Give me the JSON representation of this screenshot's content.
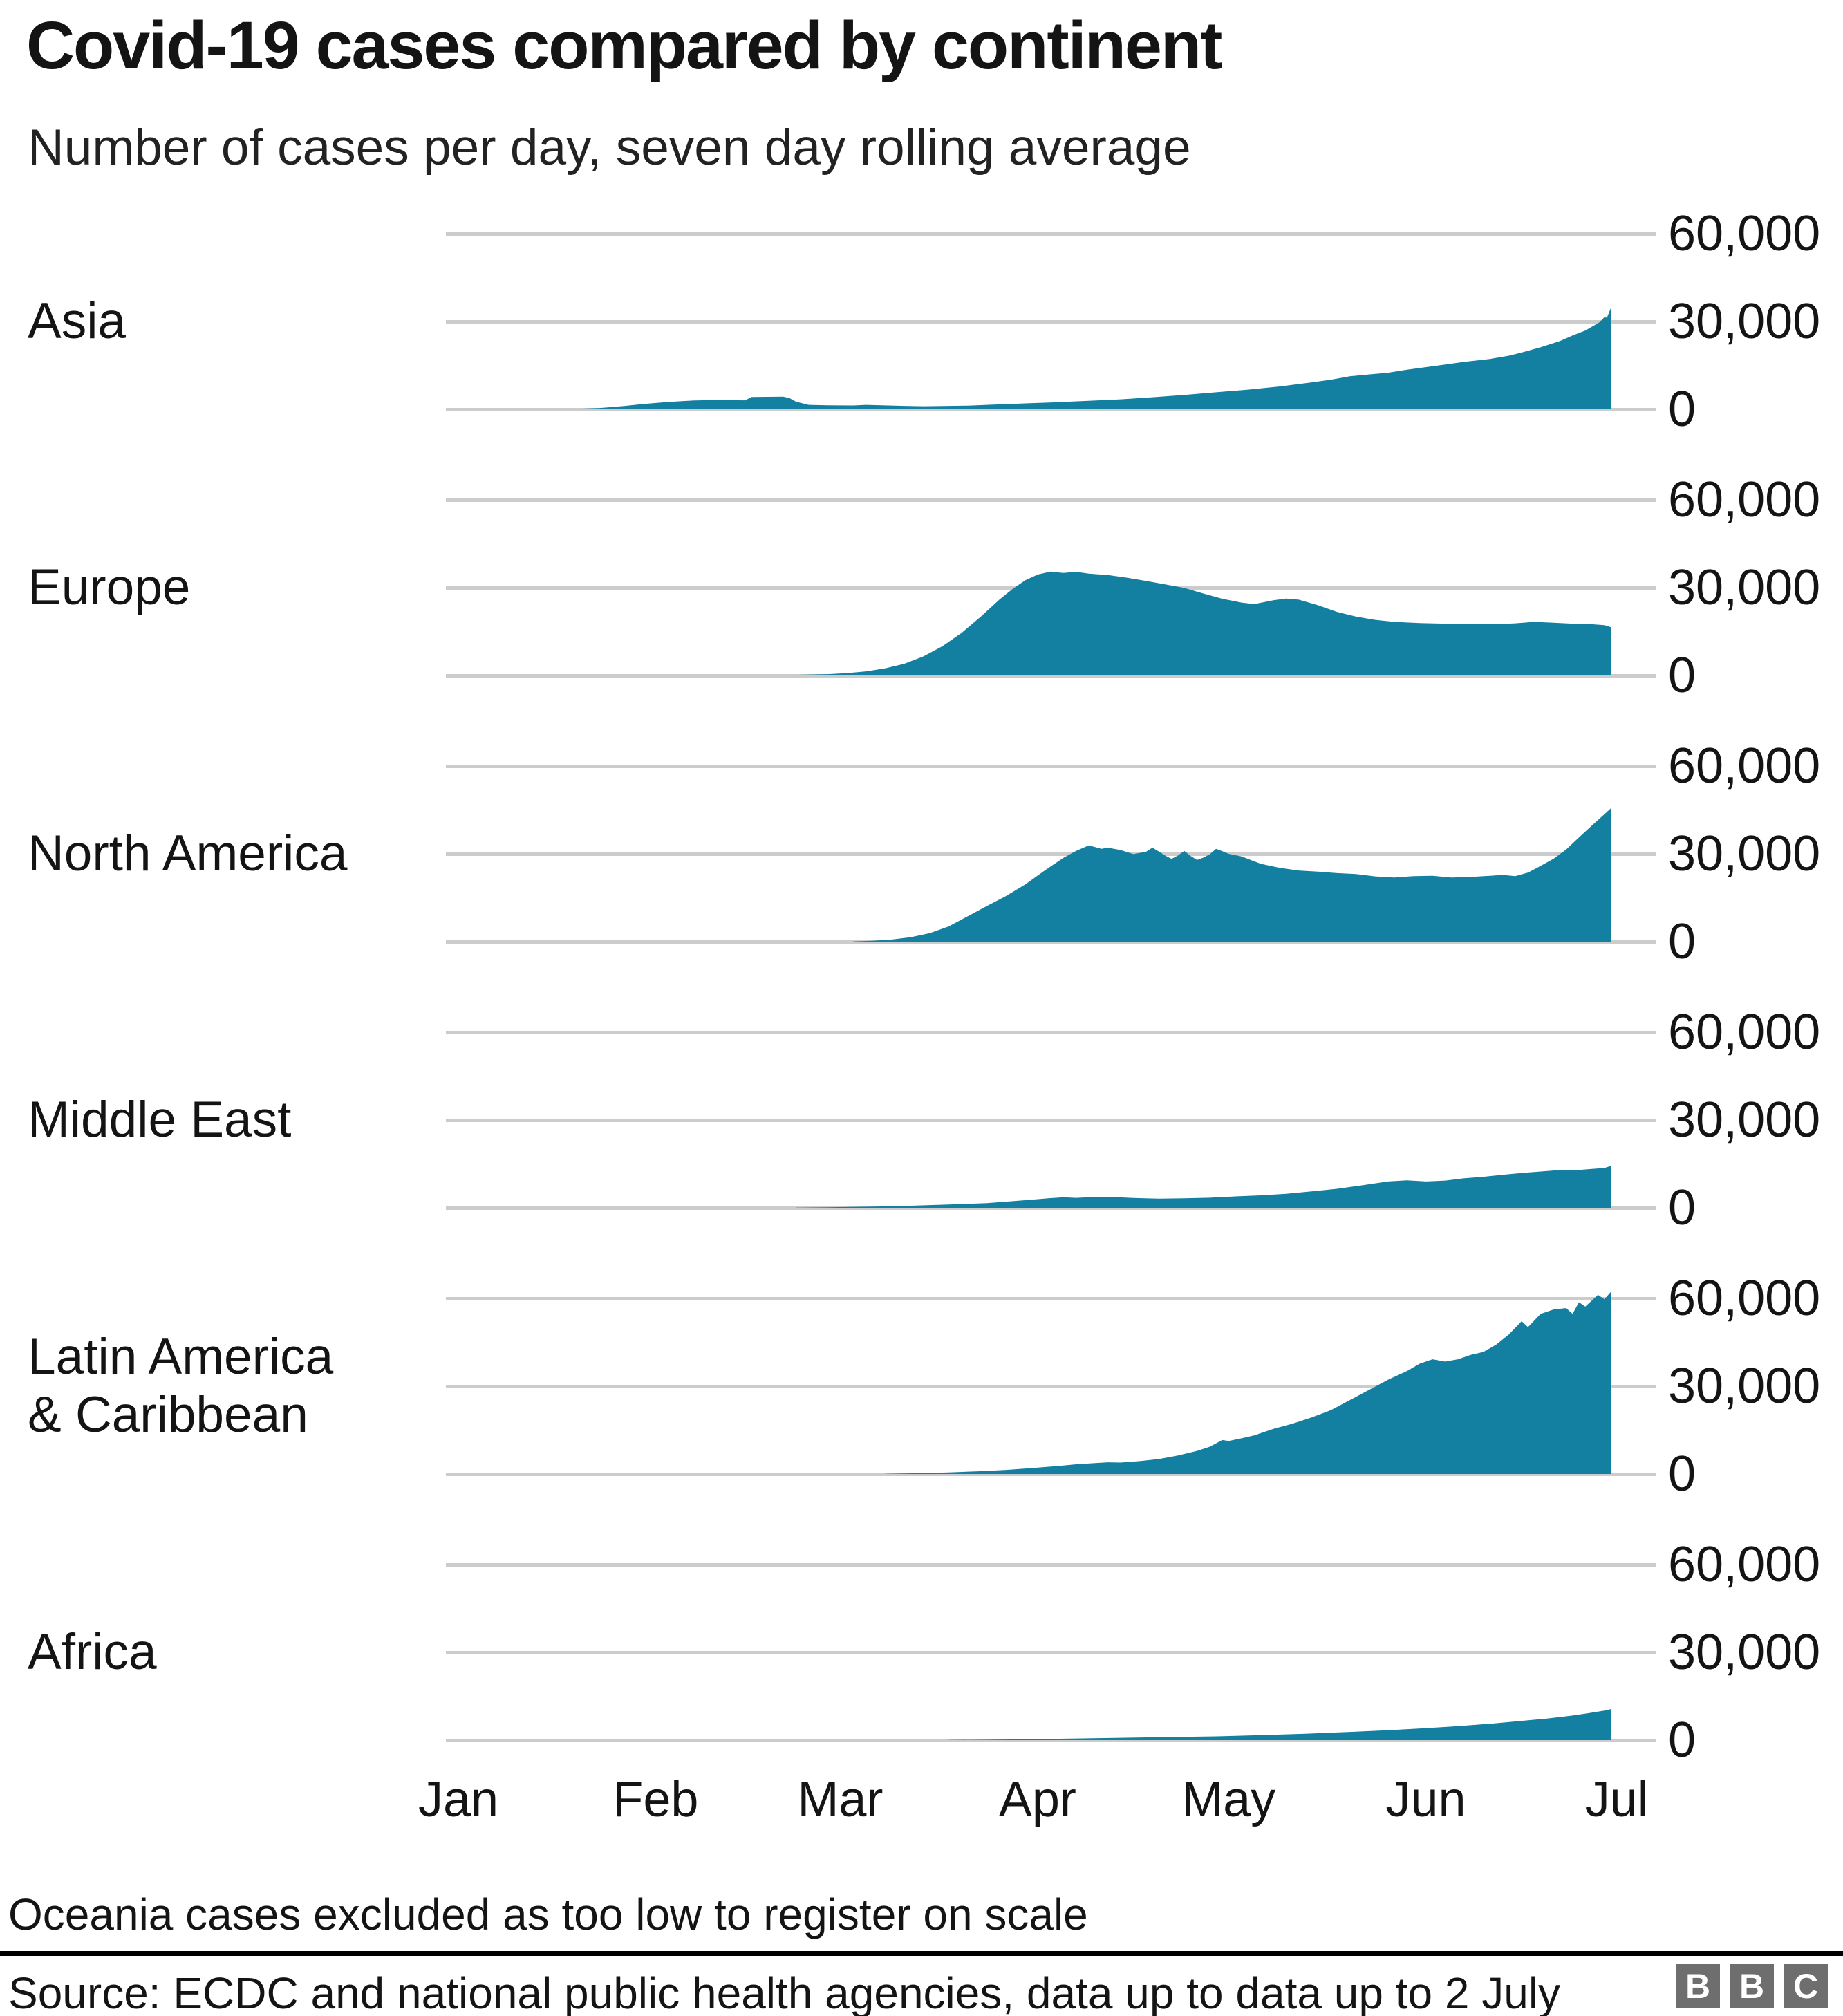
{
  "header": {
    "title": "Covid-19 cases compared by continent",
    "subtitle": "Number of cases per day, seven day rolling average"
  },
  "footer": {
    "footnote": "Oceania cases excluded as too low to register on scale",
    "source": "Source: ECDC and national public health agencies, data up to data up to 2 July",
    "logo_letters": [
      "B",
      "B",
      "C"
    ]
  },
  "colors": {
    "area": "#1380A1",
    "gridline": "#cccccc",
    "text": "#141414",
    "rule": "#000000",
    "logo_bg": "#6e6e6e"
  },
  "chart_data": {
    "type": "area",
    "title": "Covid-19 cases compared by continent",
    "subtitle": "Number of cases per day, seven day rolling average",
    "x_unit": "days_since_jan1",
    "x_range": [
      0,
      183
    ],
    "x_tick_days": [
      0,
      31,
      60,
      91,
      121,
      152,
      182
    ],
    "x_tick_labels": [
      "Jan",
      "Feb",
      "Mar",
      "Apr",
      "May",
      "Jun",
      "Jul"
    ],
    "y_range": [
      0,
      60000
    ],
    "y_gridlines": [
      60000,
      30000,
      0
    ],
    "y_tick_labels": [
      "60,000",
      "30,000",
      "0"
    ],
    "grid": true,
    "legend": "none",
    "panels": [
      {
        "id": "asia",
        "label": "Asia",
        "label_lines": [
          "Asia"
        ],
        "points": [
          [
            10,
            50
          ],
          [
            20,
            150
          ],
          [
            24,
            400
          ],
          [
            28,
            1100
          ],
          [
            31,
            1800
          ],
          [
            35,
            2500
          ],
          [
            39,
            3000
          ],
          [
            43,
            3200
          ],
          [
            45,
            3100
          ],
          [
            47,
            3050
          ],
          [
            48,
            4200
          ],
          [
            53,
            4300
          ],
          [
            54,
            3800
          ],
          [
            55,
            2600
          ],
          [
            57,
            1500
          ],
          [
            60,
            1350
          ],
          [
            64,
            1300
          ],
          [
            66,
            1500
          ],
          [
            68,
            1400
          ],
          [
            72,
            1150
          ],
          [
            75,
            1050
          ],
          [
            78,
            1100
          ],
          [
            82,
            1250
          ],
          [
            86,
            1600
          ],
          [
            91,
            2000
          ],
          [
            96,
            2400
          ],
          [
            101,
            2900
          ],
          [
            106,
            3400
          ],
          [
            111,
            4100
          ],
          [
            116,
            4900
          ],
          [
            121,
            5800
          ],
          [
            126,
            6700
          ],
          [
            131,
            7800
          ],
          [
            136,
            9200
          ],
          [
            139,
            10100
          ],
          [
            142,
            11300
          ],
          [
            145,
            11900
          ],
          [
            148,
            12500
          ],
          [
            151,
            13500
          ],
          [
            154,
            14400
          ],
          [
            157,
            15300
          ],
          [
            160,
            16200
          ],
          [
            164,
            17200
          ],
          [
            167,
            18300
          ],
          [
            169,
            19400
          ],
          [
            172,
            21200
          ],
          [
            175,
            23300
          ],
          [
            177,
            25200
          ],
          [
            179,
            26900
          ],
          [
            180.5,
            28800
          ],
          [
            181.3,
            29800
          ],
          [
            182,
            31500
          ],
          [
            182.4,
            31300
          ],
          [
            183,
            34500
          ]
        ]
      },
      {
        "id": "europe",
        "label": "Europe",
        "label_lines": [
          "Europe"
        ],
        "points": [
          [
            48,
            60
          ],
          [
            52,
            120
          ],
          [
            56,
            250
          ],
          [
            60,
            450
          ],
          [
            63,
            800
          ],
          [
            66,
            1400
          ],
          [
            69,
            2400
          ],
          [
            72,
            4000
          ],
          [
            75,
            6500
          ],
          [
            78,
            10000
          ],
          [
            81,
            14500
          ],
          [
            84,
            20000
          ],
          [
            87,
            26000
          ],
          [
            89,
            29500
          ],
          [
            91,
            32500
          ],
          [
            93,
            34500
          ],
          [
            95,
            35500
          ],
          [
            97,
            35000
          ],
          [
            99,
            35400
          ],
          [
            101,
            34800
          ],
          [
            104,
            34300
          ],
          [
            107,
            33400
          ],
          [
            110,
            32300
          ],
          [
            113,
            31100
          ],
          [
            116,
            29900
          ],
          [
            119,
            28000
          ],
          [
            122,
            26200
          ],
          [
            125,
            24900
          ],
          [
            127,
            24400
          ],
          [
            130,
            25700
          ],
          [
            132,
            26300
          ],
          [
            134,
            25900
          ],
          [
            137,
            24000
          ],
          [
            140,
            21700
          ],
          [
            143,
            20100
          ],
          [
            146,
            19000
          ],
          [
            149,
            18300
          ],
          [
            153,
            17900
          ],
          [
            157,
            17700
          ],
          [
            161,
            17600
          ],
          [
            165,
            17500
          ],
          [
            168,
            17800
          ],
          [
            171,
            18300
          ],
          [
            174,
            18000
          ],
          [
            177,
            17700
          ],
          [
            180,
            17500
          ],
          [
            182,
            17200
          ],
          [
            183,
            16500
          ]
        ]
      },
      {
        "id": "north-america",
        "label": "North America",
        "label_lines": [
          "North America"
        ],
        "points": [
          [
            64,
            100
          ],
          [
            67,
            300
          ],
          [
            70,
            700
          ],
          [
            73,
            1500
          ],
          [
            76,
            2900
          ],
          [
            79,
            5200
          ],
          [
            82,
            8700
          ],
          [
            85,
            12200
          ],
          [
            88,
            15600
          ],
          [
            91,
            19500
          ],
          [
            94,
            24200
          ],
          [
            97,
            28600
          ],
          [
            99,
            31000
          ],
          [
            101,
            32900
          ],
          [
            102,
            32300
          ],
          [
            103,
            31700
          ],
          [
            104,
            32100
          ],
          [
            106,
            31300
          ],
          [
            108,
            29900
          ],
          [
            110,
            30700
          ],
          [
            111,
            32100
          ],
          [
            112,
            30800
          ],
          [
            113,
            29400
          ],
          [
            114,
            28300
          ],
          [
            115,
            29400
          ],
          [
            116,
            31000
          ],
          [
            117,
            29300
          ],
          [
            118,
            27900
          ],
          [
            119,
            28700
          ],
          [
            120,
            29800
          ],
          [
            121,
            31700
          ],
          [
            122,
            30900
          ],
          [
            123,
            30000
          ],
          [
            125,
            29100
          ],
          [
            128,
            26600
          ],
          [
            131,
            25200
          ],
          [
            134,
            24300
          ],
          [
            137,
            23900
          ],
          [
            140,
            23400
          ],
          [
            143,
            23100
          ],
          [
            146,
            22300
          ],
          [
            149,
            21900
          ],
          [
            152,
            22400
          ],
          [
            155,
            22500
          ],
          [
            158,
            21900
          ],
          [
            161,
            22100
          ],
          [
            164,
            22500
          ],
          [
            166,
            22800
          ],
          [
            168,
            22400
          ],
          [
            170,
            23600
          ],
          [
            172,
            25900
          ],
          [
            174,
            28300
          ],
          [
            176,
            31500
          ],
          [
            178,
            35600
          ],
          [
            180,
            39600
          ],
          [
            182,
            43500
          ],
          [
            183,
            45500
          ]
        ]
      },
      {
        "id": "middle-east",
        "label": "Middle East",
        "label_lines": [
          "Middle East"
        ],
        "points": [
          [
            55,
            60
          ],
          [
            60,
            200
          ],
          [
            67,
            400
          ],
          [
            73,
            700
          ],
          [
            79,
            1100
          ],
          [
            85,
            1600
          ],
          [
            91,
            2600
          ],
          [
            95,
            3300
          ],
          [
            97,
            3600
          ],
          [
            99,
            3400
          ],
          [
            102,
            3700
          ],
          [
            105,
            3650
          ],
          [
            108,
            3350
          ],
          [
            112,
            3150
          ],
          [
            116,
            3250
          ],
          [
            120,
            3450
          ],
          [
            124,
            3900
          ],
          [
            128,
            4250
          ],
          [
            132,
            4800
          ],
          [
            136,
            5600
          ],
          [
            140,
            6500
          ],
          [
            144,
            7700
          ],
          [
            148,
            9000
          ],
          [
            151,
            9400
          ],
          [
            154,
            9000
          ],
          [
            157,
            9300
          ],
          [
            160,
            10100
          ],
          [
            163,
            10600
          ],
          [
            166,
            11300
          ],
          [
            169,
            11900
          ],
          [
            172,
            12400
          ],
          [
            175,
            12900
          ],
          [
            177,
            12750
          ],
          [
            179,
            13100
          ],
          [
            182,
            13600
          ],
          [
            183,
            14300
          ]
        ]
      },
      {
        "id": "latin-america-caribbean",
        "label": "Latin America & Caribbean",
        "label_lines": [
          "Latin America",
          "& Caribbean"
        ],
        "points": [
          [
            69,
            80
          ],
          [
            74,
            250
          ],
          [
            79,
            550
          ],
          [
            84,
            950
          ],
          [
            88,
            1400
          ],
          [
            92,
            2000
          ],
          [
            96,
            2700
          ],
          [
            99,
            3300
          ],
          [
            102,
            3700
          ],
          [
            104,
            4000
          ],
          [
            106,
            3900
          ],
          [
            109,
            4400
          ],
          [
            112,
            5100
          ],
          [
            115,
            6300
          ],
          [
            118,
            7900
          ],
          [
            120,
            9300
          ],
          [
            122,
            11600
          ],
          [
            123,
            11300
          ],
          [
            125,
            12200
          ],
          [
            127,
            13200
          ],
          [
            130,
            15400
          ],
          [
            133,
            17200
          ],
          [
            136,
            19300
          ],
          [
            139,
            21800
          ],
          [
            142,
            25200
          ],
          [
            145,
            28700
          ],
          [
            148,
            32200
          ],
          [
            151,
            35200
          ],
          [
            153,
            37700
          ],
          [
            155,
            39200
          ],
          [
            157,
            38400
          ],
          [
            159,
            39200
          ],
          [
            161,
            40700
          ],
          [
            163,
            41700
          ],
          [
            165,
            44200
          ],
          [
            167,
            47700
          ],
          [
            169,
            52200
          ],
          [
            170,
            50200
          ],
          [
            172,
            54700
          ],
          [
            174,
            56200
          ],
          [
            176,
            56700
          ],
          [
            177,
            54700
          ],
          [
            178,
            58700
          ],
          [
            179,
            57200
          ],
          [
            181,
            61200
          ],
          [
            182,
            59700
          ],
          [
            183,
            62200
          ]
        ]
      },
      {
        "id": "africa",
        "label": "Africa",
        "label_lines": [
          "Africa"
        ],
        "points": [
          [
            79,
            60
          ],
          [
            85,
            150
          ],
          [
            91,
            300
          ],
          [
            100,
            600
          ],
          [
            110,
            950
          ],
          [
            121,
            1300
          ],
          [
            128,
            1700
          ],
          [
            135,
            2200
          ],
          [
            142,
            2800
          ],
          [
            149,
            3500
          ],
          [
            154,
            4100
          ],
          [
            159,
            4800
          ],
          [
            164,
            5600
          ],
          [
            169,
            6600
          ],
          [
            173,
            7400
          ],
          [
            177,
            8400
          ],
          [
            180,
            9400
          ],
          [
            182,
            10100
          ],
          [
            183,
            10600
          ]
        ]
      }
    ]
  }
}
